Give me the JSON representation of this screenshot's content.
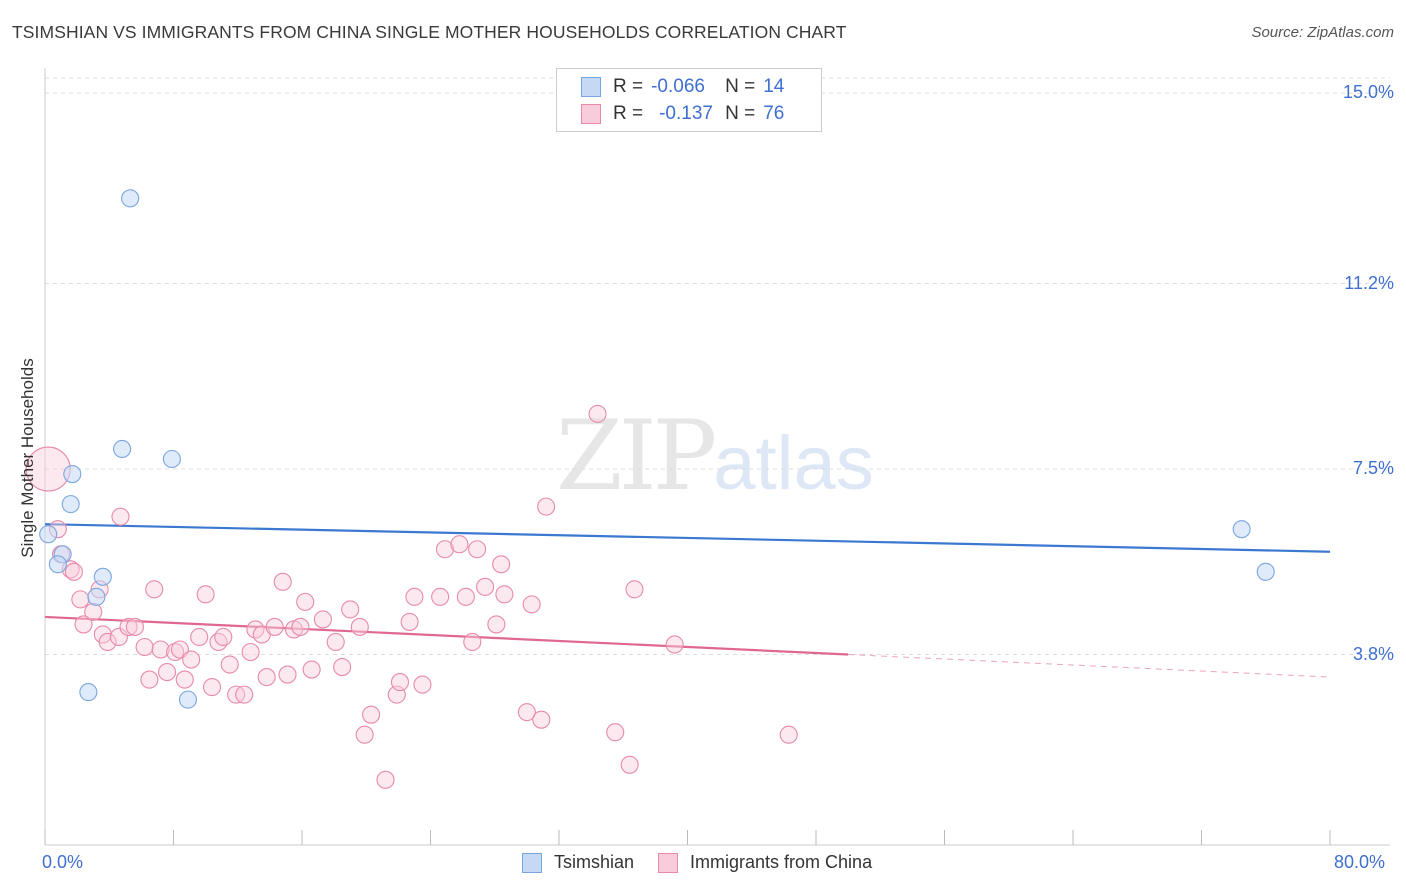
{
  "chart_data": {
    "type": "scatter",
    "title": "TSIMSHIAN VS IMMIGRANTS FROM CHINA SINGLE MOTHER HOUSEHOLDS CORRELATION CHART",
    "source": "Source: ZipAtlas.com",
    "ylabel": "Single Mother Households",
    "xlabel": "",
    "xlim": [
      0,
      80
    ],
    "ylim": [
      0,
      15.5
    ],
    "x_tick_labels": [
      "0.0%",
      "80.0%"
    ],
    "y_ticks": [
      3.8,
      7.5,
      11.2,
      15.0
    ],
    "y_tick_labels": [
      "3.8%",
      "7.5%",
      "11.2%",
      "15.0%"
    ],
    "grid": "horizontal dashed",
    "watermark": {
      "zip": "ZIP",
      "atlas": "atlas"
    },
    "legend": [
      {
        "name": "Tsimshian",
        "r_label": "R =",
        "r": "-0.066",
        "n_label": "N =",
        "n": "14",
        "color": "#7aa6e0",
        "fill": "#c5d9f5"
      },
      {
        "name": "Immigrants from China",
        "r_label": "R =",
        "r": "-0.137",
        "n_label": "N =",
        "n": "76",
        "color": "#e88aa8",
        "fill": "#f9ccdb"
      }
    ],
    "series": [
      {
        "name": "Tsimshian",
        "color": "#7aa6e0",
        "trend": {
          "x0": 0,
          "y0": 6.4,
          "x1": 80,
          "y1": 5.85,
          "color": "#3b78d0"
        },
        "points": [
          [
            5.3,
            12.9
          ],
          [
            4.8,
            7.9
          ],
          [
            7.9,
            7.7
          ],
          [
            1.7,
            7.4
          ],
          [
            1.6,
            6.8
          ],
          [
            0.2,
            6.2
          ],
          [
            1.1,
            5.8
          ],
          [
            0.8,
            5.6
          ],
          [
            3.6,
            5.35
          ],
          [
            3.2,
            4.95
          ],
          [
            2.7,
            3.05
          ],
          [
            8.9,
            2.9
          ],
          [
            74.5,
            6.3
          ],
          [
            76.0,
            5.45
          ]
        ]
      },
      {
        "name": "Immigrants from China",
        "color": "#e88aa8",
        "trend": {
          "x0": 0,
          "y0": 4.55,
          "x1": 50,
          "y1": 3.8,
          "dash_x1": 80,
          "dash_y1": 3.35,
          "color": "#e06890"
        },
        "points": [
          [
            0.2,
            7.5
          ],
          [
            0.8,
            6.3
          ],
          [
            1.0,
            5.8
          ],
          [
            1.6,
            5.5
          ],
          [
            1.8,
            5.45
          ],
          [
            2.2,
            4.9
          ],
          [
            2.4,
            4.4
          ],
          [
            3.0,
            4.65
          ],
          [
            3.4,
            5.1
          ],
          [
            3.6,
            4.2
          ],
          [
            3.9,
            4.05
          ],
          [
            4.6,
            4.15
          ],
          [
            4.7,
            6.55
          ],
          [
            5.2,
            4.35
          ],
          [
            5.6,
            4.35
          ],
          [
            6.2,
            3.95
          ],
          [
            6.5,
            3.3
          ],
          [
            6.8,
            5.1
          ],
          [
            7.2,
            3.9
          ],
          [
            7.6,
            3.45
          ],
          [
            8.1,
            3.85
          ],
          [
            8.4,
            3.9
          ],
          [
            8.7,
            3.3
          ],
          [
            9.1,
            3.7
          ],
          [
            9.6,
            4.15
          ],
          [
            10.0,
            5.0
          ],
          [
            10.4,
            3.15
          ],
          [
            10.8,
            4.05
          ],
          [
            11.1,
            4.15
          ],
          [
            11.5,
            3.6
          ],
          [
            11.9,
            3.0
          ],
          [
            12.4,
            3.0
          ],
          [
            12.8,
            3.85
          ],
          [
            13.1,
            4.3
          ],
          [
            13.5,
            4.2
          ],
          [
            13.8,
            3.35
          ],
          [
            14.3,
            4.35
          ],
          [
            14.8,
            5.25
          ],
          [
            15.1,
            3.4
          ],
          [
            15.5,
            4.3
          ],
          [
            15.9,
            4.35
          ],
          [
            16.2,
            4.85
          ],
          [
            16.6,
            3.5
          ],
          [
            17.3,
            4.5
          ],
          [
            18.1,
            4.05
          ],
          [
            18.5,
            3.55
          ],
          [
            19.0,
            4.7
          ],
          [
            19.6,
            4.35
          ],
          [
            19.9,
            2.2
          ],
          [
            20.3,
            2.6
          ],
          [
            21.2,
            1.3
          ],
          [
            21.9,
            3.0
          ],
          [
            22.1,
            3.25
          ],
          [
            22.7,
            4.45
          ],
          [
            23.0,
            4.95
          ],
          [
            23.5,
            3.2
          ],
          [
            24.6,
            4.95
          ],
          [
            24.9,
            5.9
          ],
          [
            25.8,
            6.0
          ],
          [
            26.2,
            4.95
          ],
          [
            26.6,
            4.05
          ],
          [
            26.9,
            5.9
          ],
          [
            27.4,
            5.15
          ],
          [
            28.1,
            4.4
          ],
          [
            28.4,
            5.6
          ],
          [
            28.6,
            5.0
          ],
          [
            30.0,
            2.65
          ],
          [
            30.3,
            4.8
          ],
          [
            30.9,
            2.5
          ],
          [
            31.2,
            6.75
          ],
          [
            34.4,
            8.6
          ],
          [
            35.5,
            2.25
          ],
          [
            36.4,
            1.6
          ],
          [
            36.7,
            5.1
          ],
          [
            39.2,
            4.0
          ],
          [
            46.3,
            2.2
          ]
        ]
      }
    ]
  }
}
